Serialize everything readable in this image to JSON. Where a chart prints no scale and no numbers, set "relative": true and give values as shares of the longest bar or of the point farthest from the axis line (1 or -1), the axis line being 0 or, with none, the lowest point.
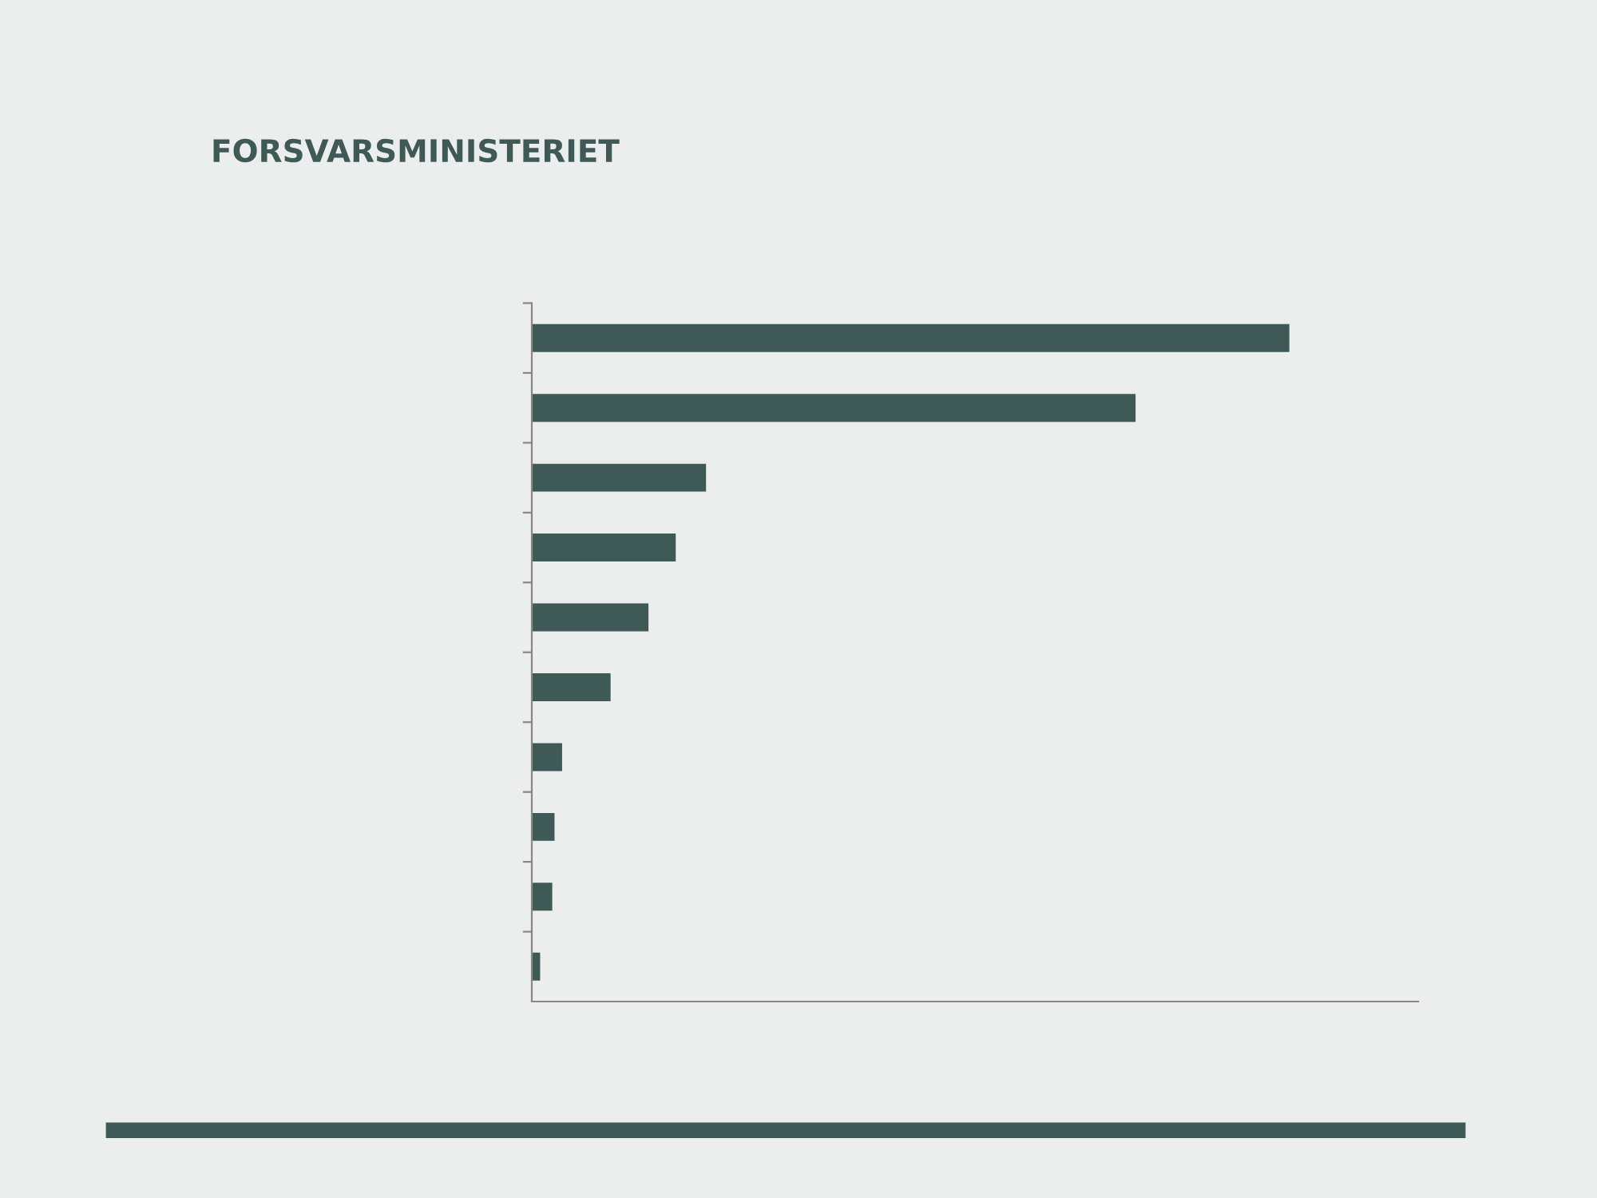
{
  "chart_data": {
    "type": "bar",
    "orientation": "horizontal",
    "relative": true,
    "annotations": [
      "FORSVARSMINISTERIET"
    ],
    "categories": [
      null,
      null,
      null,
      null,
      null,
      null,
      null,
      null,
      null,
      null
    ],
    "values": [
      1,
      0.797,
      0.23,
      0.19,
      0.154,
      0.104,
      0.04,
      0.03,
      0.027,
      0.011
    ],
    "color": "#3f5a56",
    "grid": false,
    "legend": false
  }
}
